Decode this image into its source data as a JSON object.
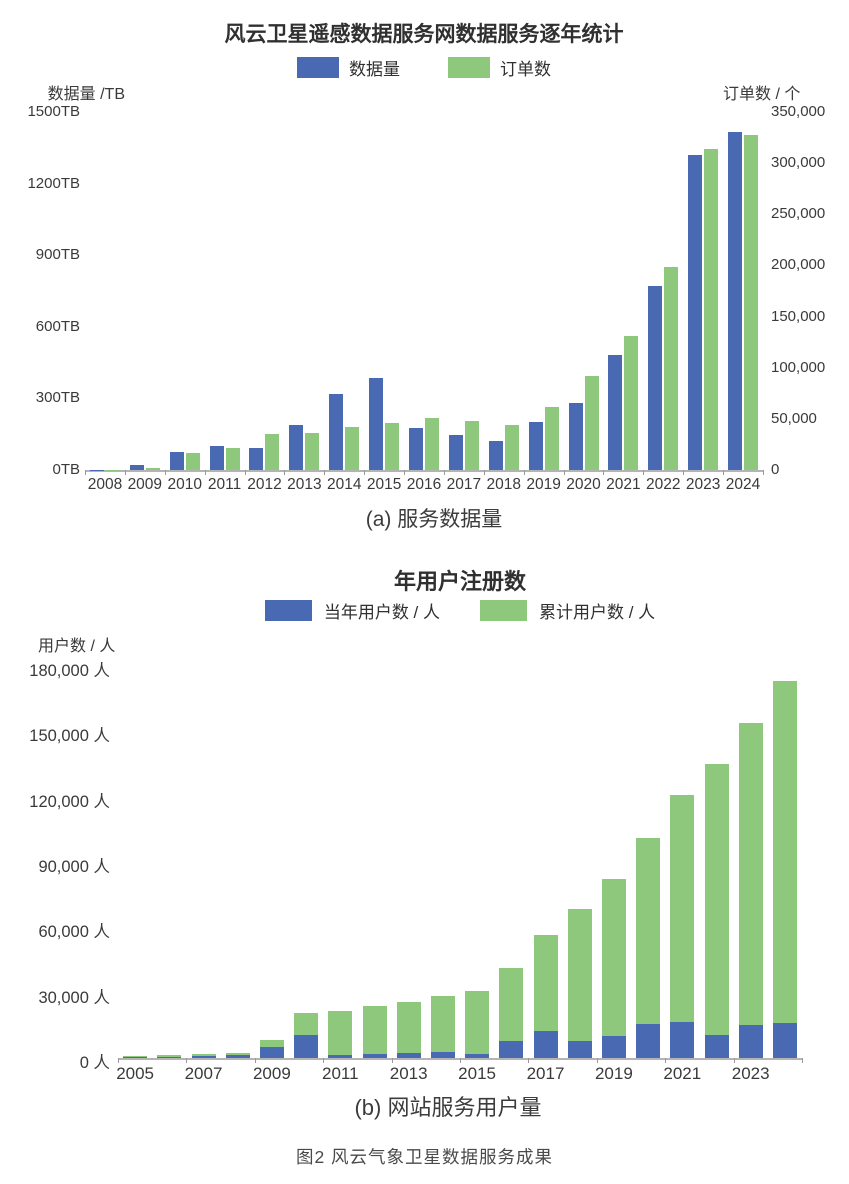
{
  "figure_caption": "图2  风云气象卫星数据服务成果",
  "colors": {
    "bar_blue": "#4a69b3",
    "bar_green": "#8dc87c",
    "axis_line": "#b4b4b4",
    "text_dark": "#333333"
  },
  "chart_data": [
    {
      "id": "service-data-volume",
      "type": "bar",
      "title": "风云卫星遥感数据服务网数据服务逐年统计",
      "caption": "(a) 服务数据量",
      "legend_position": "top",
      "grid": false,
      "categories": [
        "2008",
        "2009",
        "2010",
        "2011",
        "2012",
        "2013",
        "2014",
        "2015",
        "2016",
        "2017",
        "2018",
        "2019",
        "2020",
        "2021",
        "2022",
        "2023",
        "2024"
      ],
      "left_axis": {
        "label": "数据量 /TB",
        "range": [
          0,
          1500
        ],
        "ticks": [
          "1500TB",
          "1200TB",
          "900TB",
          "600TB",
          "300TB",
          "0TB"
        ]
      },
      "right_axis": {
        "label": "订单数 / 个",
        "range": [
          0,
          350000
        ],
        "ticks": [
          "350,000",
          "300,000",
          "250,000",
          "200,000",
          "150,000",
          "100,000",
          "50,000",
          "0"
        ]
      },
      "series": [
        {
          "name": "数据量",
          "axis": "left",
          "unit": "TB",
          "color": "#4a69b3",
          "values": [
            1,
            20,
            75,
            100,
            92,
            190,
            320,
            385,
            175,
            145,
            120,
            200,
            280,
            480,
            770,
            1320,
            1415
          ]
        },
        {
          "name": "订单数",
          "axis": "right",
          "unit": "个",
          "color": "#8dc87c",
          "values": [
            300,
            2000,
            17000,
            22000,
            35000,
            36500,
            42000,
            46000,
            51000,
            48000,
            44000,
            62000,
            92000,
            131000,
            198000,
            314000,
            328000
          ]
        }
      ]
    },
    {
      "id": "website-users",
      "type": "bar",
      "title": "年用户注册数",
      "caption": "(b) 网站服务用户量",
      "legend_position": "top",
      "grid": false,
      "overlay": true,
      "categories": [
        "2005",
        "2006",
        "2007",
        "2008",
        "2009",
        "2010",
        "2011",
        "2012",
        "2013",
        "2014",
        "2015",
        "2016",
        "2017",
        "2018",
        "2019",
        "2020",
        "2021",
        "2022",
        "2023",
        "2024"
      ],
      "left_axis": {
        "label": "用户数 / 人",
        "range": [
          0,
          180000
        ],
        "ticks": [
          "180,000 人",
          "150,000 人",
          "120,000 人",
          "90,000 人",
          "60,000 人",
          "30,000 人",
          "0 人"
        ]
      },
      "x_tick_labels": [
        "2005",
        "2007",
        "2009",
        "2011",
        "2013",
        "2015",
        "2017",
        "2019",
        "2021",
        "2023"
      ],
      "series": [
        {
          "name": "当年用户数 / 人",
          "unit": "人",
          "color": "#4a69b3",
          "values": [
            400,
            600,
            900,
            1200,
            5000,
            10500,
            1200,
            2000,
            2500,
            2800,
            1800,
            7700,
            12300,
            8000,
            10000,
            15400,
            16500,
            10500,
            15100,
            16200
          ]
        },
        {
          "name": "累计用户数 / 人",
          "unit": "人",
          "color": "#8dc87c",
          "values": [
            700,
            1200,
            1700,
            2400,
            8300,
            20500,
            21500,
            24000,
            25700,
            28500,
            31000,
            41500,
            56500,
            68500,
            82000,
            101000,
            121000,
            135000,
            154000,
            173000
          ]
        }
      ]
    }
  ]
}
